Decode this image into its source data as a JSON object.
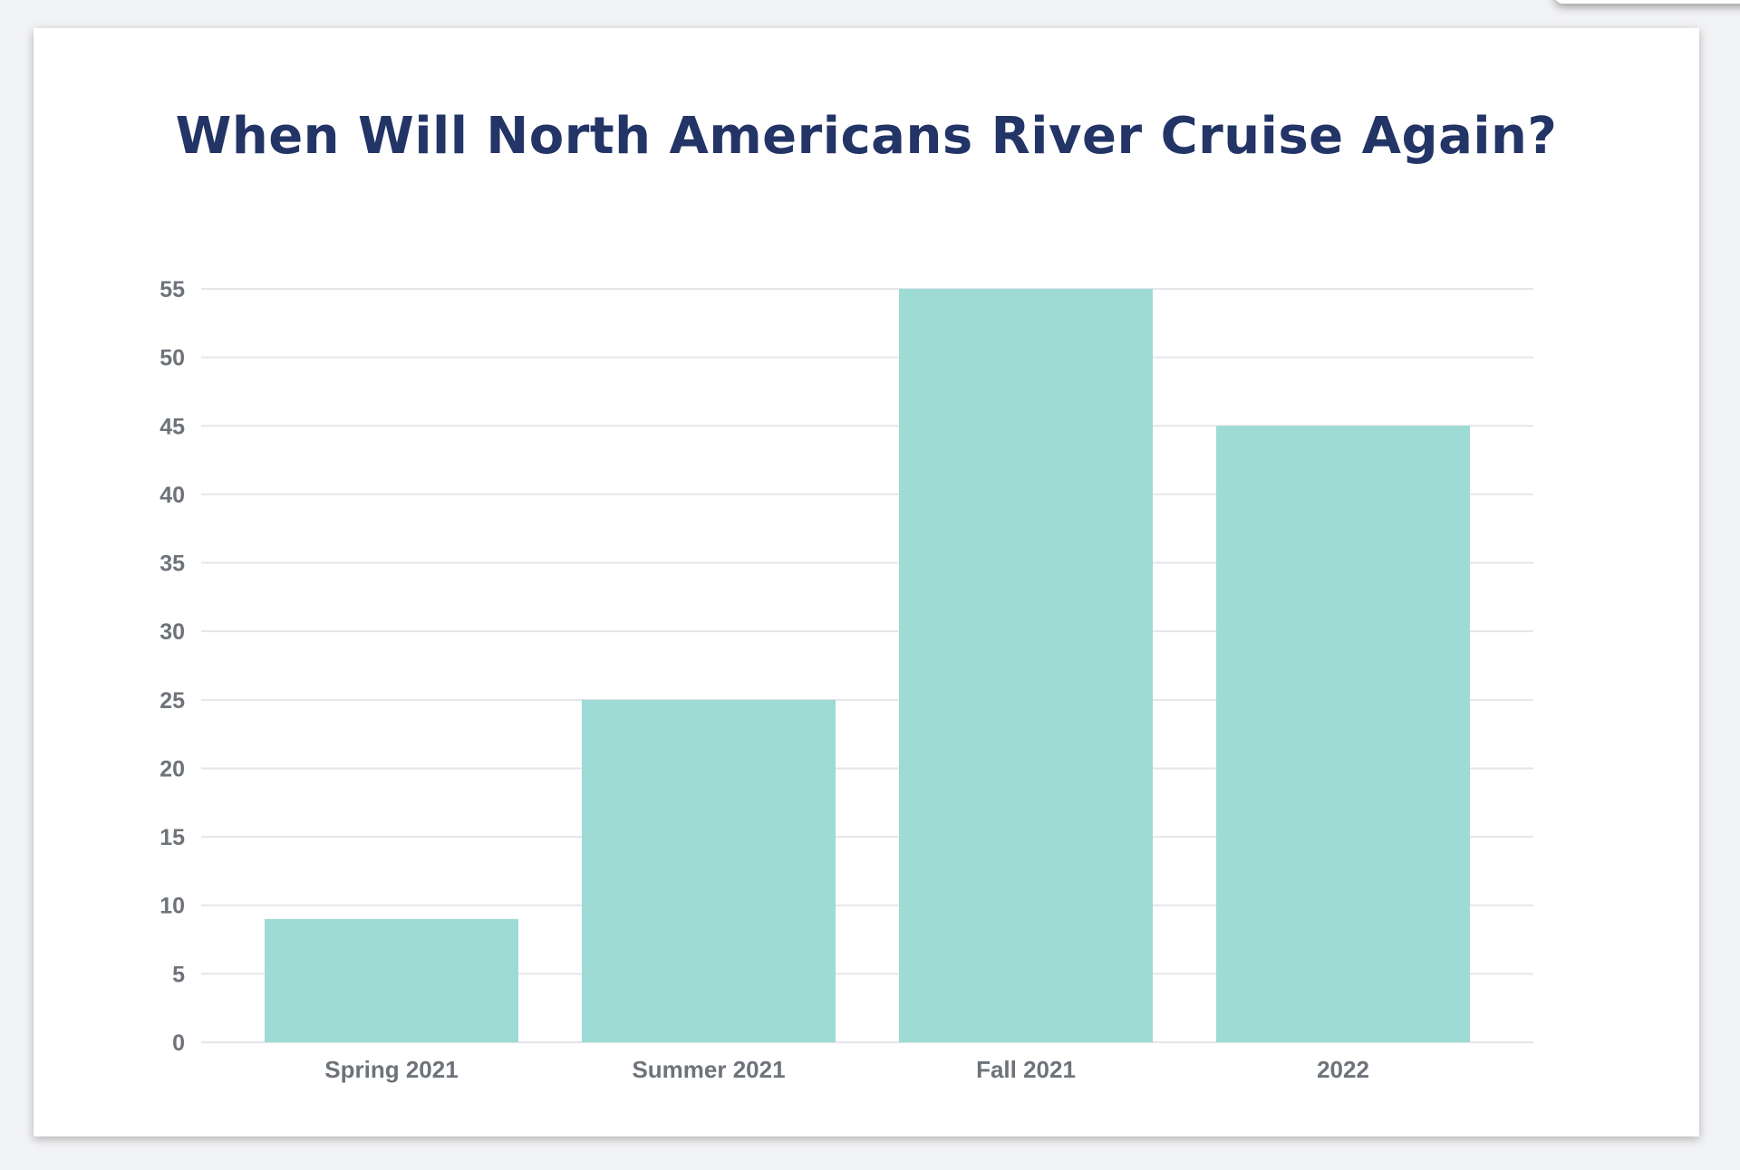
{
  "colors": {
    "title": "#233466",
    "bar": "#9ddbd4",
    "grid": "#e3e6ea",
    "tick_label": "#6e737a"
  },
  "chart_data": {
    "type": "bar",
    "title": "When Will North Americans River Cruise Again?",
    "categories": [
      "Spring 2021",
      "Summer 2021",
      "Fall 2021",
      "2022"
    ],
    "values": [
      9,
      25,
      55,
      45
    ],
    "ylim": [
      0,
      55
    ],
    "yticks": [
      "0",
      "5",
      "10",
      "15",
      "20",
      "25",
      "30",
      "35",
      "40",
      "45",
      "50",
      "55"
    ],
    "grid": true,
    "legend": "none"
  }
}
